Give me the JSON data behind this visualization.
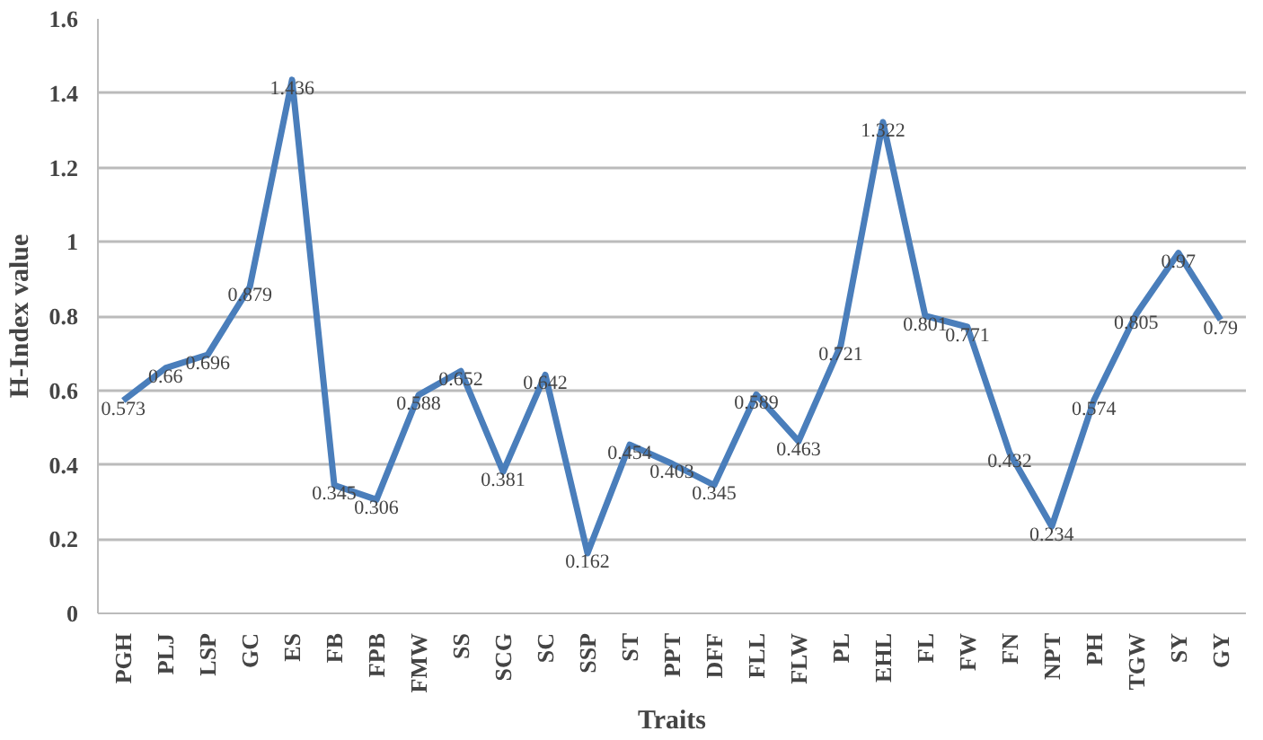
{
  "chart_data": {
    "type": "line",
    "xlabel": "Traits",
    "ylabel": "H-Index value",
    "categories": [
      "PGH",
      "PLJ",
      "LSP",
      "GC",
      "ES",
      "FB",
      "FPB",
      "FMW",
      "SS",
      "SCG",
      "SC",
      "SSP",
      "ST",
      "PPT",
      "DFF",
      "FLL",
      "FLW",
      "PL",
      "EHL",
      "FL",
      "FW",
      "FN",
      "NPT",
      "PH",
      "TGW",
      "SY",
      "GY"
    ],
    "series": [
      {
        "color": "#4a7ebb",
        "values": [
          0.573,
          0.66,
          0.696,
          0.879,
          1.436,
          0.345,
          0.306,
          0.588,
          0.652,
          0.381,
          0.642,
          0.162,
          0.454,
          0.403,
          0.345,
          0.589,
          0.463,
          0.721,
          1.322,
          0.801,
          0.771,
          0.432,
          0.234,
          0.574,
          0.805,
          0.97,
          0.79
        ]
      }
    ],
    "ylim": [
      0,
      1.6
    ],
    "yticks": [
      0,
      0.2,
      0.4,
      0.6,
      0.8,
      1,
      1.2,
      1.4,
      1.6
    ],
    "grid": "y",
    "data_labels": true,
    "marker": "none",
    "line_style": "solid"
  }
}
